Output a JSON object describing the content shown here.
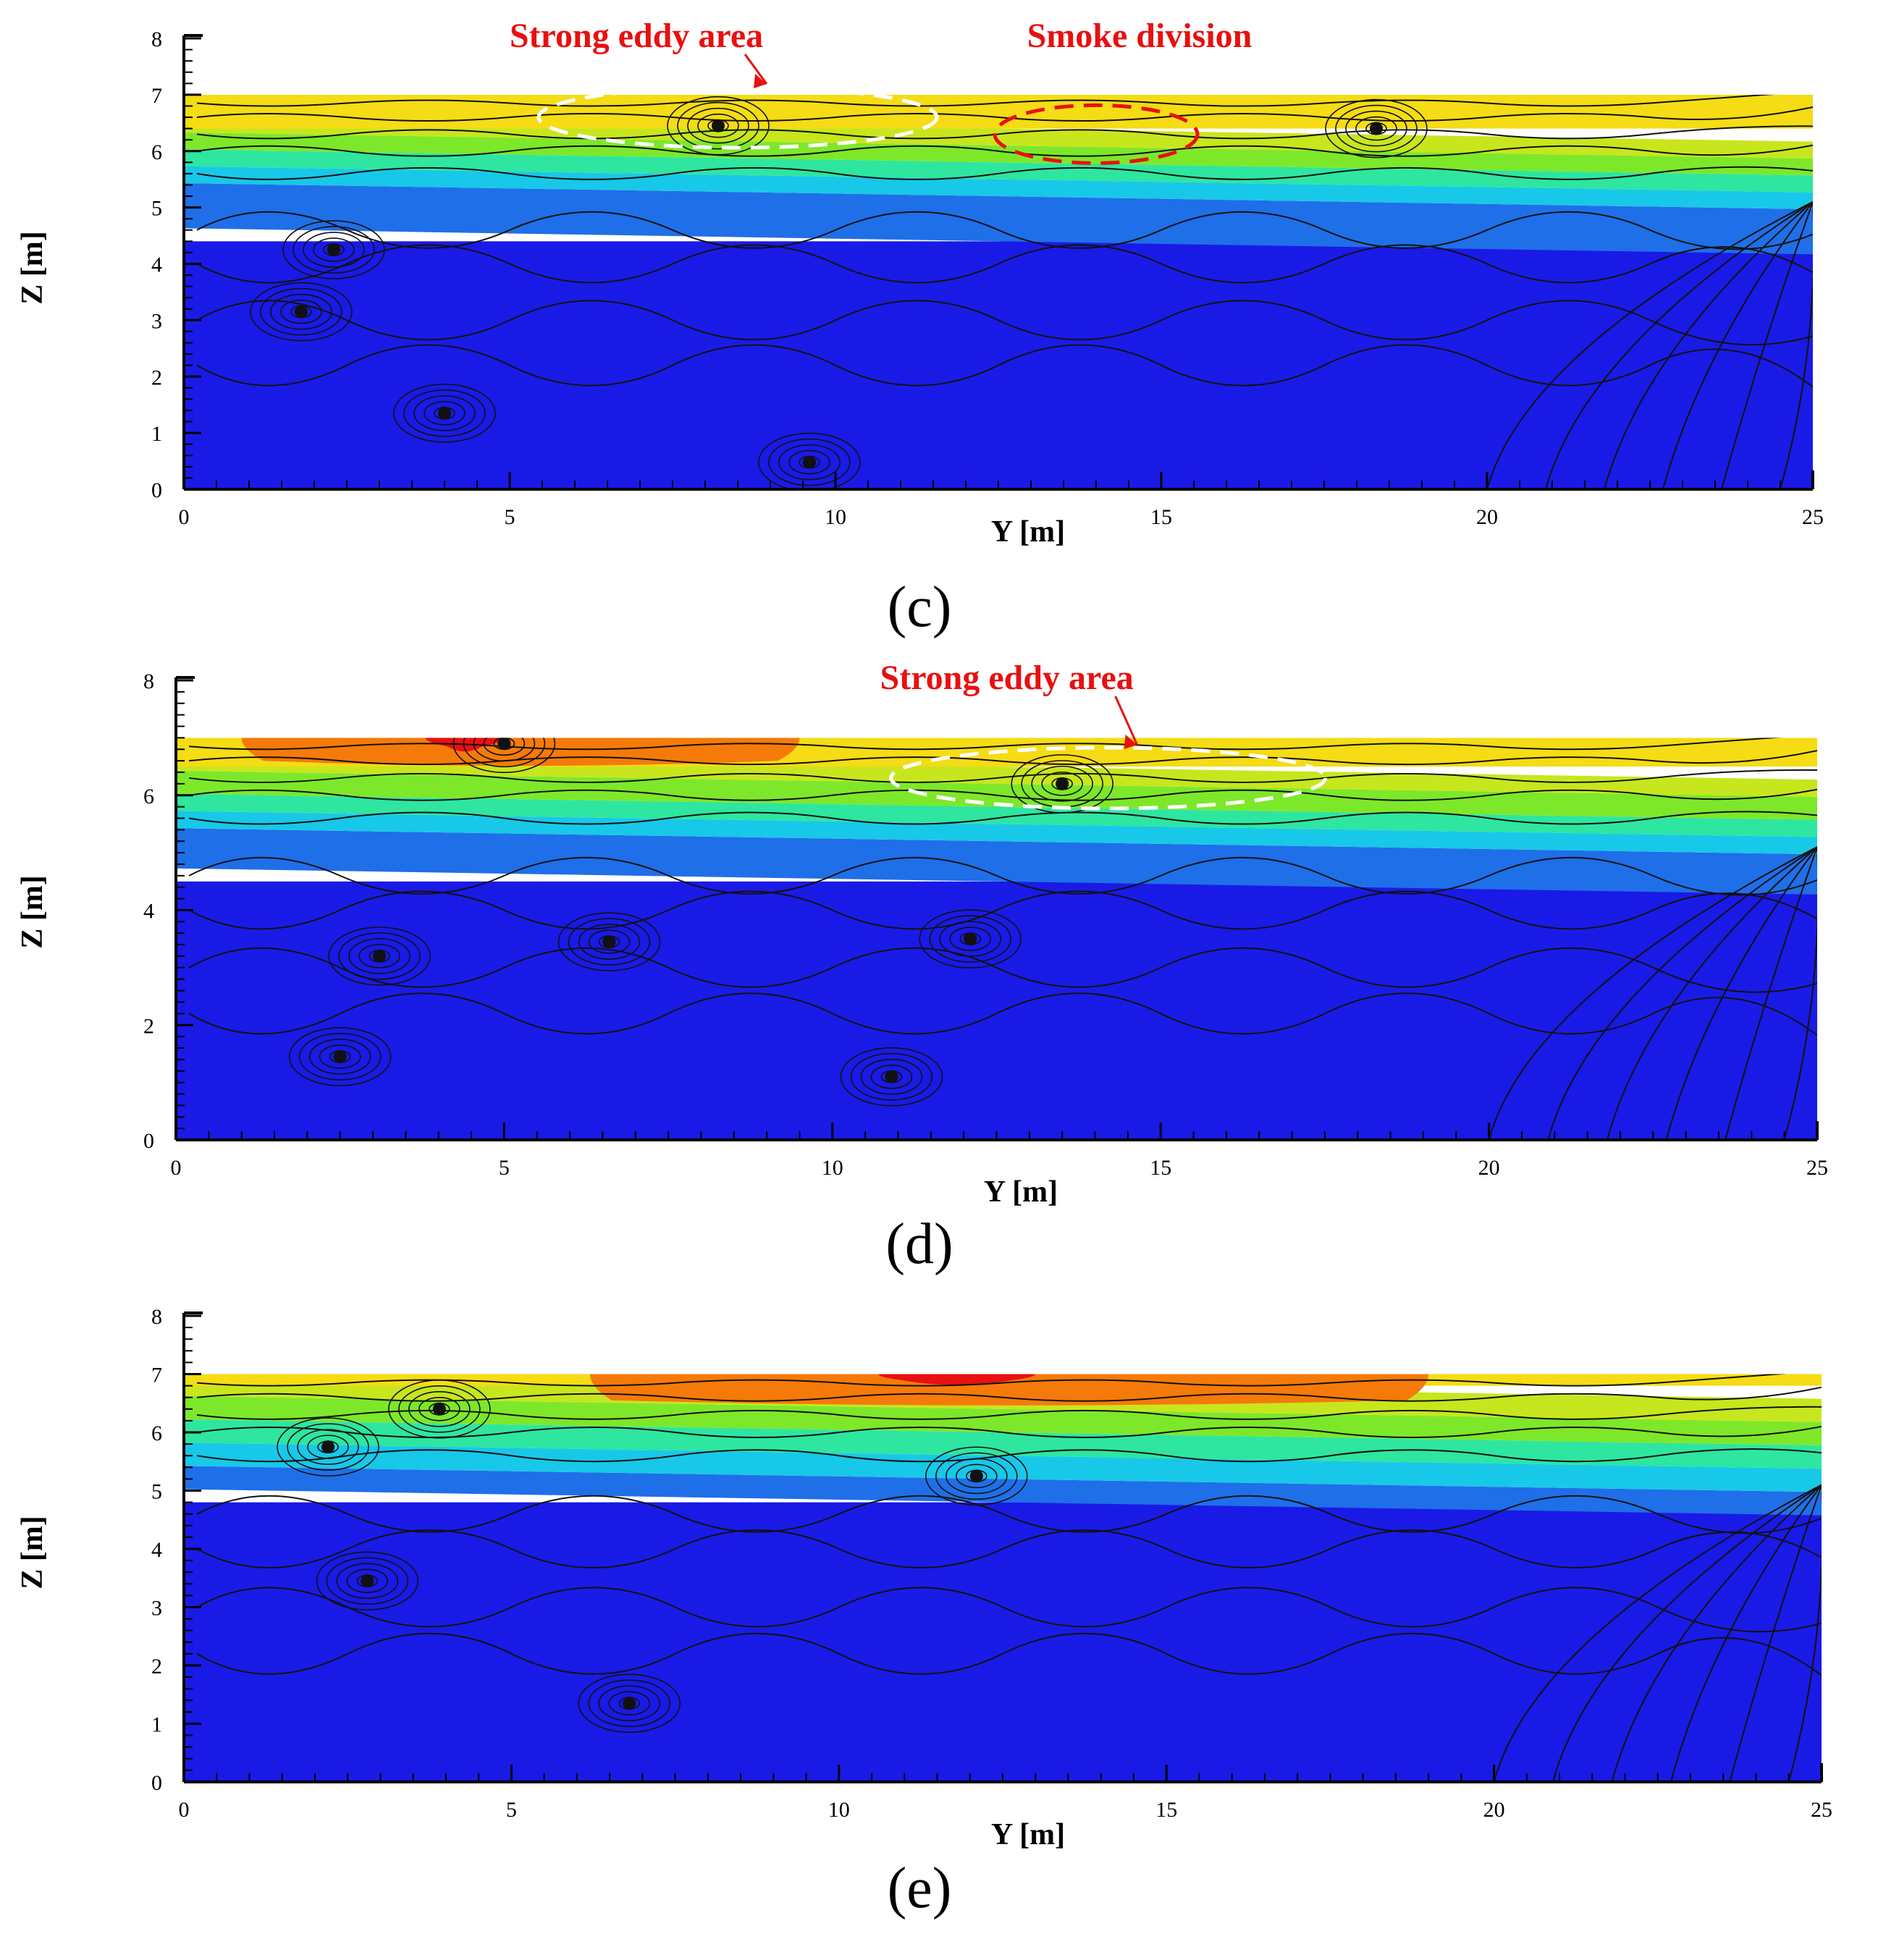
{
  "figure": {
    "panels": [
      {
        "label": "(c)",
        "annotations": [
          "Strong eddy area",
          "Smoke division"
        ]
      },
      {
        "label": "(d)",
        "annotations": [
          "Strong eddy area"
        ]
      },
      {
        "label": "(e)",
        "annotations": []
      }
    ]
  },
  "chart_data": [
    {
      "type": "heatmap",
      "panel": "(c)",
      "title": "",
      "xlabel": "Y [m]",
      "ylabel": "Z [m]",
      "xlim": [
        0,
        25
      ],
      "ylim": [
        0,
        8
      ],
      "xticks": [
        0,
        5,
        10,
        15,
        20,
        25
      ],
      "yticks": [
        0,
        1,
        2,
        3,
        4,
        5,
        6,
        7,
        8
      ],
      "domain_top": 7,
      "outlet_step": {
        "y_from": 25,
        "z_from": 5,
        "z_to": 6.5
      },
      "color_bands": [
        {
          "z_from": 0,
          "z_to": 4.4,
          "color": "#1a1ae6"
        },
        {
          "z_from": 4.4,
          "z_to": 5.2,
          "color": "#1f6fe8"
        },
        {
          "z_from": 5.2,
          "z_to": 5.5,
          "color": "#18c8e8"
        },
        {
          "z_from": 5.5,
          "z_to": 5.8,
          "color": "#2ee6a0"
        },
        {
          "z_from": 5.8,
          "z_to": 6.1,
          "color": "#7de82a"
        },
        {
          "z_from": 6.1,
          "z_to": 6.4,
          "color": "#c8e61e"
        },
        {
          "z_from": 6.4,
          "z_to": 7.0,
          "color": "#f5dc14"
        }
      ],
      "vortex_centers": [
        {
          "y": 2.3,
          "z": 4.25
        },
        {
          "y": 1.8,
          "z": 3.15
        },
        {
          "y": 4.0,
          "z": 1.35
        },
        {
          "y": 9.6,
          "z": 0.48
        },
        {
          "y": 8.2,
          "z": 6.45
        },
        {
          "y": 18.3,
          "z": 6.4
        }
      ],
      "annotations": [
        {
          "text": "Strong eddy area",
          "target": {
            "y": 8.5,
            "z": 6.6
          },
          "marker": "white-dashed-ellipse"
        },
        {
          "text": "Smoke division",
          "target": {
            "y": 14.0,
            "z": 6.3
          },
          "marker": "red-dashed-ellipse"
        }
      ]
    },
    {
      "type": "heatmap",
      "panel": "(d)",
      "title": "",
      "xlabel": "Y [m]",
      "ylabel": "Z [m]",
      "xlim": [
        0,
        25
      ],
      "ylim": [
        0,
        8
      ],
      "xticks": [
        0,
        5,
        10,
        15,
        20,
        25
      ],
      "yticks": [
        0,
        2,
        4,
        6,
        8
      ],
      "domain_top": 7,
      "outlet_step": {
        "y_from": 25,
        "z_from": 5,
        "z_to": 6.5
      },
      "color_bands": [
        {
          "z_from": 0,
          "z_to": 4.5,
          "color": "#1a1ae6"
        },
        {
          "z_from": 4.5,
          "z_to": 5.2,
          "color": "#1f6fe8"
        },
        {
          "z_from": 5.2,
          "z_to": 5.5,
          "color": "#18c8e8"
        },
        {
          "z_from": 5.5,
          "z_to": 5.8,
          "color": "#2ee6a0"
        },
        {
          "z_from": 5.8,
          "z_to": 6.2,
          "color": "#7de82a"
        },
        {
          "z_from": 6.2,
          "z_to": 6.5,
          "color": "#c8e61e"
        },
        {
          "z_from": 6.5,
          "z_to": 7.0,
          "color": "#f5dc14"
        }
      ],
      "hot_zones": [
        {
          "y_from": 1.0,
          "y_to": 9.5,
          "z_from": 6.6,
          "z_to": 7.0,
          "color": "#f57a0a"
        },
        {
          "y_from": 3.8,
          "y_to": 5.0,
          "z_from": 6.85,
          "z_to": 7.0,
          "color": "#e81010"
        }
      ],
      "vortex_centers": [
        {
          "y": 5.0,
          "z": 6.9
        },
        {
          "y": 3.1,
          "z": 3.2
        },
        {
          "y": 6.6,
          "z": 3.45
        },
        {
          "y": 12.1,
          "z": 3.5
        },
        {
          "y": 2.5,
          "z": 1.45
        },
        {
          "y": 10.9,
          "z": 1.1
        },
        {
          "y": 13.5,
          "z": 6.2
        }
      ],
      "annotations": [
        {
          "text": "Strong eddy area",
          "target": {
            "y": 14.2,
            "z": 6.3
          },
          "marker": "white-dashed-ellipse"
        }
      ]
    },
    {
      "type": "heatmap",
      "panel": "(e)",
      "title": "",
      "xlabel": "Y [m]",
      "ylabel": "Z [m]",
      "xlim": [
        0,
        25
      ],
      "ylim": [
        0,
        8
      ],
      "xticks": [
        0,
        5,
        10,
        15,
        20,
        25
      ],
      "yticks": [
        0,
        1,
        2,
        3,
        4,
        5,
        6,
        7,
        8
      ],
      "domain_top": 7,
      "outlet_step": {
        "y_from": 25,
        "z_from": 5,
        "z_to": 6.5
      },
      "color_bands": [
        {
          "z_from": 0,
          "z_to": 4.8,
          "color": "#1a1ae6"
        },
        {
          "z_from": 4.8,
          "z_to": 5.2,
          "color": "#1f6fe8"
        },
        {
          "z_from": 5.2,
          "z_to": 5.6,
          "color": "#18c8e8"
        },
        {
          "z_from": 5.6,
          "z_to": 6.0,
          "color": "#2ee6a0"
        },
        {
          "z_from": 6.0,
          "z_to": 6.4,
          "color": "#7de82a"
        },
        {
          "z_from": 6.4,
          "z_to": 6.8,
          "color": "#c8e61e"
        },
        {
          "z_from": 6.8,
          "z_to": 7.0,
          "color": "#f5dc14"
        }
      ],
      "hot_zones": [
        {
          "y_from": 6.2,
          "y_to": 19.0,
          "z_from": 6.55,
          "z_to": 7.0,
          "color": "#f57a0a"
        },
        {
          "y_from": 10.6,
          "y_to": 13.0,
          "z_from": 6.9,
          "z_to": 7.0,
          "color": "#e81010"
        }
      ],
      "vortex_centers": [
        {
          "y": 2.2,
          "z": 5.75
        },
        {
          "y": 3.9,
          "z": 6.4
        },
        {
          "y": 2.8,
          "z": 3.45
        },
        {
          "y": 6.8,
          "z": 1.35
        },
        {
          "y": 12.1,
          "z": 5.25
        }
      ],
      "annotations": []
    }
  ]
}
